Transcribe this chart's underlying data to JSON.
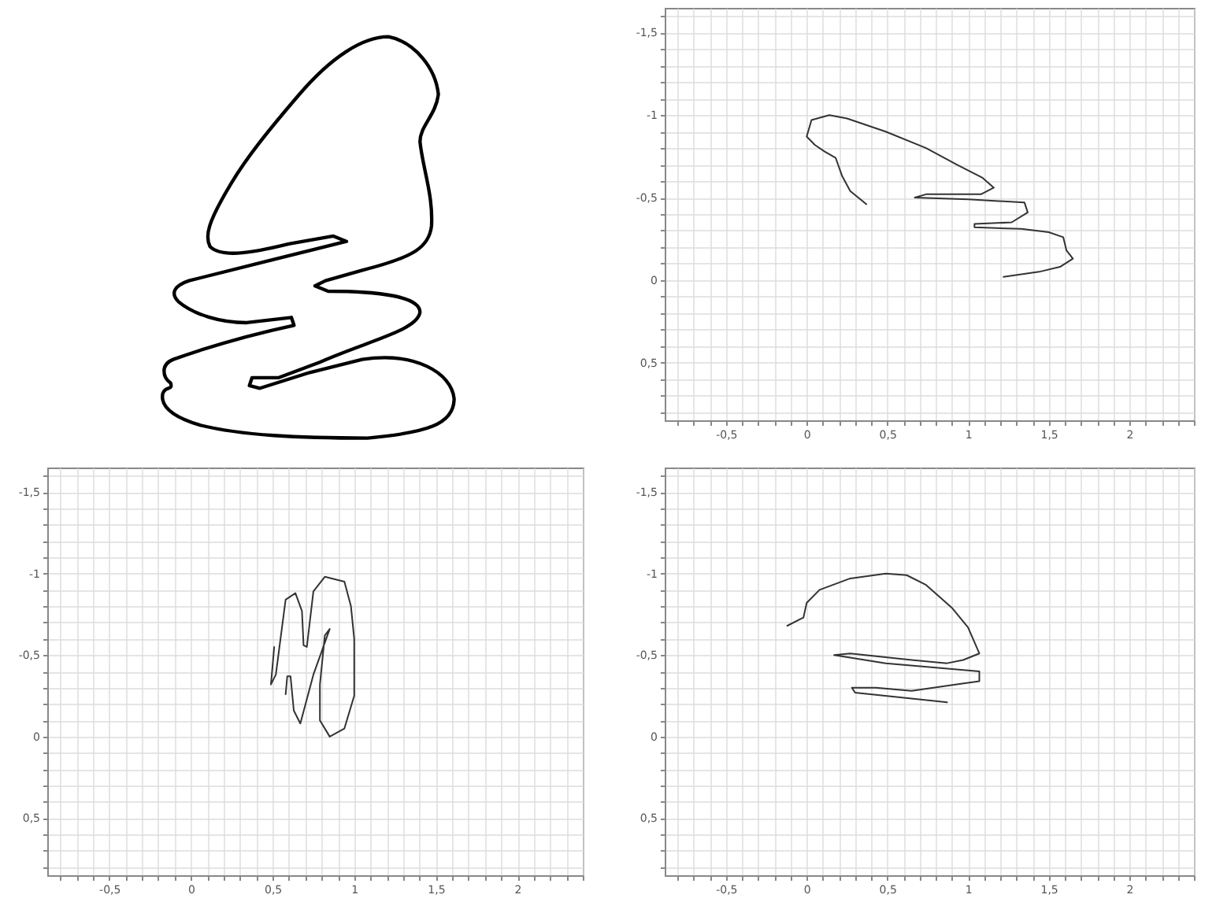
{
  "chart_data": [
    {
      "type": "line",
      "xlim": [
        -0.88,
        2.4
      ],
      "ylim": [
        0.85,
        -1.65
      ],
      "grid": true,
      "xticks": [
        {
          "value": -0.8,
          "label": null
        },
        {
          "value": -0.7,
          "label": null
        },
        {
          "value": -0.6,
          "label": null
        },
        {
          "value": -0.5,
          "label": "-0,5"
        },
        {
          "value": -0.4,
          "label": null
        },
        {
          "value": -0.3,
          "label": null
        },
        {
          "value": -0.2,
          "label": null
        },
        {
          "value": -0.1,
          "label": null
        },
        {
          "value": 0,
          "label": "0"
        },
        {
          "value": 0.1,
          "label": null
        },
        {
          "value": 0.2,
          "label": null
        },
        {
          "value": 0.3,
          "label": null
        },
        {
          "value": 0.4,
          "label": null
        },
        {
          "value": 0.5,
          "label": "0,5"
        },
        {
          "value": 0.6,
          "label": null
        },
        {
          "value": 0.7,
          "label": null
        },
        {
          "value": 0.8,
          "label": null
        },
        {
          "value": 0.9,
          "label": null
        },
        {
          "value": 1,
          "label": "1"
        },
        {
          "value": 1.1,
          "label": null
        },
        {
          "value": 1.2,
          "label": null
        },
        {
          "value": 1.3,
          "label": null
        },
        {
          "value": 1.4,
          "label": null
        },
        {
          "value": 1.5,
          "label": "1,5"
        },
        {
          "value": 1.6,
          "label": null
        },
        {
          "value": 1.7,
          "label": null
        },
        {
          "value": 1.8,
          "label": null
        },
        {
          "value": 1.9,
          "label": null
        },
        {
          "value": 2,
          "label": "2"
        },
        {
          "value": 2.1,
          "label": null
        },
        {
          "value": 2.2,
          "label": null
        },
        {
          "value": 2.3,
          "label": null
        },
        {
          "value": 2.4,
          "label": null
        }
      ],
      "yticks": [
        {
          "value": -1.6,
          "label": null
        },
        {
          "value": -1.5,
          "label": "-1,5"
        },
        {
          "value": -1.4,
          "label": null
        },
        {
          "value": -1.3,
          "label": null
        },
        {
          "value": -1.2,
          "label": null
        },
        {
          "value": -1.1,
          "label": null
        },
        {
          "value": -1,
          "label": "-1"
        },
        {
          "value": -0.9,
          "label": null
        },
        {
          "value": -0.8,
          "label": null
        },
        {
          "value": -0.7,
          "label": null
        },
        {
          "value": -0.6,
          "label": null
        },
        {
          "value": -0.5,
          "label": "-0,5"
        },
        {
          "value": -0.4,
          "label": null
        },
        {
          "value": -0.3,
          "label": null
        },
        {
          "value": -0.2,
          "label": null
        },
        {
          "value": -0.1,
          "label": null
        },
        {
          "value": 0,
          "label": "0"
        },
        {
          "value": 0.1,
          "label": null
        },
        {
          "value": 0.2,
          "label": null
        },
        {
          "value": 0.3,
          "label": null
        },
        {
          "value": 0.4,
          "label": null
        },
        {
          "value": 0.5,
          "label": "0,5"
        },
        {
          "value": 0.6,
          "label": null
        },
        {
          "value": 0.7,
          "label": null
        },
        {
          "value": 0.8,
          "label": null
        }
      ],
      "series": [
        {
          "color": "#333333",
          "x": [
            0.37,
            0.27,
            0.22,
            0.18,
            0.11,
            0.05,
            0,
            0.03,
            0.14,
            0.25,
            0.49,
            0.74,
            0.93,
            1.09,
            1.16,
            1.08,
            0.74,
            0.67,
            1.0,
            1.35,
            1.37,
            1.27,
            1.04,
            1.04,
            1.33,
            1.5,
            1.59,
            1.61,
            1.65,
            1.57,
            1.44,
            1.22
          ],
          "values": [
            -0.46,
            -0.54,
            -0.63,
            -0.74,
            -0.78,
            -0.82,
            -0.87,
            -0.97,
            -1.0,
            -0.98,
            -0.9,
            -0.8,
            -0.7,
            -0.62,
            -0.56,
            -0.52,
            -0.52,
            -0.5,
            -0.49,
            -0.47,
            -0.41,
            -0.35,
            -0.34,
            -0.32,
            -0.31,
            -0.29,
            -0.26,
            -0.18,
            -0.13,
            -0.08,
            -0.05,
            -0.02
          ]
        }
      ]
    },
    {
      "type": "line",
      "xlim": [
        -0.88,
        2.4
      ],
      "ylim": [
        0.85,
        -1.65
      ],
      "grid": true,
      "xticks": [
        {
          "value": -0.8,
          "label": null
        },
        {
          "value": -0.7,
          "label": null
        },
        {
          "value": -0.6,
          "label": null
        },
        {
          "value": -0.5,
          "label": "-0,5"
        },
        {
          "value": -0.4,
          "label": null
        },
        {
          "value": -0.3,
          "label": null
        },
        {
          "value": -0.2,
          "label": null
        },
        {
          "value": -0.1,
          "label": null
        },
        {
          "value": 0,
          "label": "0"
        },
        {
          "value": 0.1,
          "label": null
        },
        {
          "value": 0.2,
          "label": null
        },
        {
          "value": 0.3,
          "label": null
        },
        {
          "value": 0.4,
          "label": null
        },
        {
          "value": 0.5,
          "label": "0,5"
        },
        {
          "value": 0.6,
          "label": null
        },
        {
          "value": 0.7,
          "label": null
        },
        {
          "value": 0.8,
          "label": null
        },
        {
          "value": 0.9,
          "label": null
        },
        {
          "value": 1,
          "label": "1"
        },
        {
          "value": 1.1,
          "label": null
        },
        {
          "value": 1.2,
          "label": null
        },
        {
          "value": 1.3,
          "label": null
        },
        {
          "value": 1.4,
          "label": null
        },
        {
          "value": 1.5,
          "label": "1,5"
        },
        {
          "value": 1.6,
          "label": null
        },
        {
          "value": 1.7,
          "label": null
        },
        {
          "value": 1.8,
          "label": null
        },
        {
          "value": 1.9,
          "label": null
        },
        {
          "value": 2,
          "label": "2"
        },
        {
          "value": 2.1,
          "label": null
        },
        {
          "value": 2.2,
          "label": null
        },
        {
          "value": 2.3,
          "label": null
        },
        {
          "value": 2.4,
          "label": null
        }
      ],
      "yticks": [
        {
          "value": -1.6,
          "label": null
        },
        {
          "value": -1.5,
          "label": "-1,5"
        },
        {
          "value": -1.4,
          "label": null
        },
        {
          "value": -1.3,
          "label": null
        },
        {
          "value": -1.2,
          "label": null
        },
        {
          "value": -1.1,
          "label": null
        },
        {
          "value": -1,
          "label": "-1"
        },
        {
          "value": -0.9,
          "label": null
        },
        {
          "value": -0.8,
          "label": null
        },
        {
          "value": -0.7,
          "label": null
        },
        {
          "value": -0.6,
          "label": null
        },
        {
          "value": -0.5,
          "label": "-0,5"
        },
        {
          "value": -0.4,
          "label": null
        },
        {
          "value": -0.3,
          "label": null
        },
        {
          "value": -0.2,
          "label": null
        },
        {
          "value": -0.1,
          "label": null
        },
        {
          "value": 0,
          "label": "0"
        },
        {
          "value": 0.1,
          "label": null
        },
        {
          "value": 0.2,
          "label": null
        },
        {
          "value": 0.3,
          "label": null
        },
        {
          "value": 0.4,
          "label": null
        },
        {
          "value": 0.5,
          "label": "0,5"
        },
        {
          "value": 0.6,
          "label": null
        },
        {
          "value": 0.7,
          "label": null
        },
        {
          "value": 0.8,
          "label": null
        }
      ],
      "series": [
        {
          "color": "#333333",
          "x": [
            0.51,
            0.49,
            0.52,
            0.58,
            0.64,
            0.68,
            0.69,
            0.71,
            0.75,
            0.82,
            0.94,
            0.98,
            1.0,
            1.0,
            0.94,
            0.85,
            0.79,
            0.79,
            0.82,
            0.85,
            0.75,
            0.67,
            0.63,
            0.61,
            0.59,
            0.58
          ],
          "values": [
            -0.55,
            -0.32,
            -0.38,
            -0.84,
            -0.88,
            -0.77,
            -0.56,
            -0.55,
            -0.89,
            -0.98,
            -0.95,
            -0.8,
            -0.6,
            -0.25,
            -0.05,
            0,
            -0.1,
            -0.32,
            -0.62,
            -0.66,
            -0.38,
            -0.08,
            -0.16,
            -0.37,
            -0.37,
            -0.26
          ]
        }
      ]
    },
    {
      "type": "line",
      "xlim": [
        -0.88,
        2.4
      ],
      "ylim": [
        0.85,
        -1.65
      ],
      "grid": true,
      "xticks": [
        {
          "value": -0.8,
          "label": null
        },
        {
          "value": -0.7,
          "label": null
        },
        {
          "value": -0.6,
          "label": null
        },
        {
          "value": -0.5,
          "label": "-0,5"
        },
        {
          "value": -0.4,
          "label": null
        },
        {
          "value": -0.3,
          "label": null
        },
        {
          "value": -0.2,
          "label": null
        },
        {
          "value": -0.1,
          "label": null
        },
        {
          "value": 0,
          "label": "0"
        },
        {
          "value": 0.1,
          "label": null
        },
        {
          "value": 0.2,
          "label": null
        },
        {
          "value": 0.3,
          "label": null
        },
        {
          "value": 0.4,
          "label": null
        },
        {
          "value": 0.5,
          "label": "0,5"
        },
        {
          "value": 0.6,
          "label": null
        },
        {
          "value": 0.7,
          "label": null
        },
        {
          "value": 0.8,
          "label": null
        },
        {
          "value": 0.9,
          "label": null
        },
        {
          "value": 1,
          "label": "1"
        },
        {
          "value": 1.1,
          "label": null
        },
        {
          "value": 1.2,
          "label": null
        },
        {
          "value": 1.3,
          "label": null
        },
        {
          "value": 1.4,
          "label": null
        },
        {
          "value": 1.5,
          "label": "1,5"
        },
        {
          "value": 1.6,
          "label": null
        },
        {
          "value": 1.7,
          "label": null
        },
        {
          "value": 1.8,
          "label": null
        },
        {
          "value": 1.9,
          "label": null
        },
        {
          "value": 2,
          "label": "2"
        },
        {
          "value": 2.1,
          "label": null
        },
        {
          "value": 2.2,
          "label": null
        },
        {
          "value": 2.3,
          "label": null
        },
        {
          "value": 2.4,
          "label": null
        }
      ],
      "yticks": [
        {
          "value": -1.6,
          "label": null
        },
        {
          "value": -1.5,
          "label": "-1,5"
        },
        {
          "value": -1.4,
          "label": null
        },
        {
          "value": -1.3,
          "label": null
        },
        {
          "value": -1.2,
          "label": null
        },
        {
          "value": -1.1,
          "label": null
        },
        {
          "value": -1,
          "label": "-1"
        },
        {
          "value": -0.9,
          "label": null
        },
        {
          "value": -0.8,
          "label": null
        },
        {
          "value": -0.7,
          "label": null
        },
        {
          "value": -0.6,
          "label": null
        },
        {
          "value": -0.5,
          "label": "-0,5"
        },
        {
          "value": -0.4,
          "label": null
        },
        {
          "value": -0.3,
          "label": null
        },
        {
          "value": -0.2,
          "label": null
        },
        {
          "value": -0.1,
          "label": null
        },
        {
          "value": 0,
          "label": "0"
        },
        {
          "value": 0.1,
          "label": null
        },
        {
          "value": 0.2,
          "label": null
        },
        {
          "value": 0.3,
          "label": null
        },
        {
          "value": 0.4,
          "label": null
        },
        {
          "value": 0.5,
          "label": "0,5"
        },
        {
          "value": 0.6,
          "label": null
        },
        {
          "value": 0.7,
          "label": null
        },
        {
          "value": 0.8,
          "label": null
        }
      ],
      "series": [
        {
          "color": "#333333",
          "x": [
            -0.12,
            -0.02,
            0,
            0.08,
            0.27,
            0.49,
            0.62,
            0.74,
            0.9,
            1.0,
            1.07,
            0.97,
            0.87,
            0.65,
            0.27,
            0.17,
            0.49,
            1.07,
            1.07,
            0.93,
            0.65,
            0.43,
            0.28,
            0.3,
            0.87
          ],
          "values": [
            -0.68,
            -0.73,
            -0.82,
            -0.9,
            -0.97,
            -1.0,
            -0.99,
            -0.93,
            -0.79,
            -0.67,
            -0.51,
            -0.47,
            -0.45,
            -0.47,
            -0.51,
            -0.5,
            -0.45,
            -0.4,
            -0.34,
            -0.32,
            -0.28,
            -0.3,
            -0.3,
            -0.27,
            -0.21
          ]
        }
      ]
    }
  ]
}
